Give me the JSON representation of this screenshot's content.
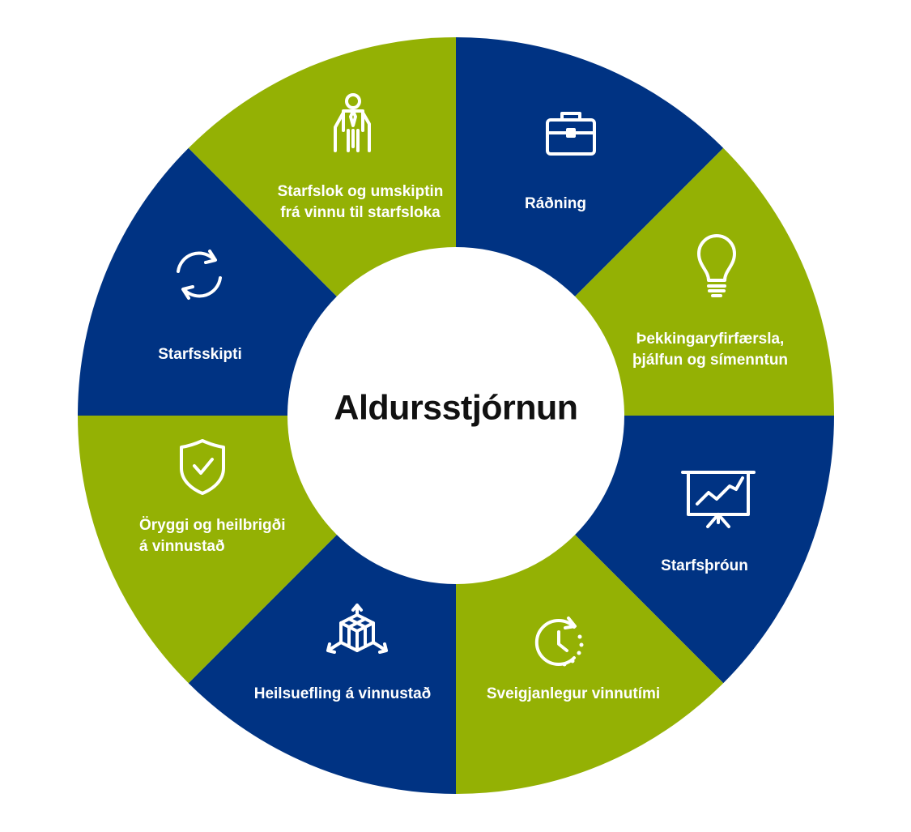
{
  "title": "Aldursstjórnun",
  "colors": {
    "blue": "#003383",
    "green": "#94B104",
    "center": "#ffffff",
    "text": "#ffffff"
  },
  "segments": [
    {
      "label_lines": [
        "Ráðning"
      ],
      "color": "blue",
      "icon": "briefcase-icon"
    },
    {
      "label_lines": [
        "Þekkingaryfirfærsla,",
        "þjálfun og símenntun"
      ],
      "color": "green",
      "icon": "lightbulb-icon"
    },
    {
      "label_lines": [
        "Starfsþróun"
      ],
      "color": "blue",
      "icon": "presentation-chart-icon"
    },
    {
      "label_lines": [
        "Sveigjanlegur vinnutími"
      ],
      "color": "green",
      "icon": "clock-icon"
    },
    {
      "label_lines": [
        "Heilsuefling á vinnustað"
      ],
      "color": "blue",
      "icon": "cube-arrows-icon"
    },
    {
      "label_lines": [
        "Öryggi og heilbrigði",
        "á vinnustað"
      ],
      "color": "green",
      "icon": "shield-check-icon"
    },
    {
      "label_lines": [
        "Starfsskipti"
      ],
      "color": "blue",
      "icon": "refresh-icon"
    },
    {
      "label_lines": [
        "Starfslok og umskiptin",
        "frá vinnu til starfsloka"
      ],
      "color": "green",
      "icon": "elderly-person-icon"
    }
  ]
}
